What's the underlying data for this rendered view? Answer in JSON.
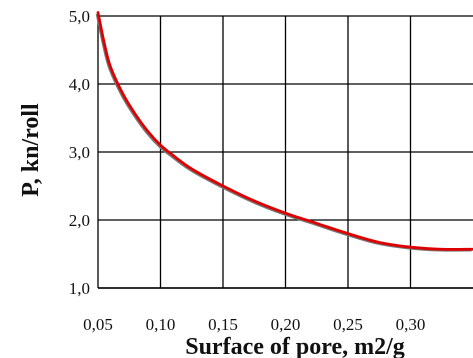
{
  "chart_data": {
    "type": "line",
    "title": "",
    "xlabel": "Surface of pore, m2/g",
    "ylabel": "P, kn/roll",
    "xlim": [
      0.05,
      0.35
    ],
    "ylim": [
      1.0,
      5.0
    ],
    "x_ticks": [
      "0,05",
      "0,10",
      "0,15",
      "0,20",
      "0,25",
      "0,30"
    ],
    "y_ticks": [
      "1,0",
      "2,0",
      "3,0",
      "4,0",
      "5,0"
    ],
    "grid": true,
    "series": [
      {
        "color": "#dd0000",
        "x": [
          0.05,
          0.055,
          0.06,
          0.07,
          0.08,
          0.09,
          0.1,
          0.11,
          0.125,
          0.15,
          0.175,
          0.2,
          0.225,
          0.25,
          0.275,
          0.3,
          0.325,
          0.35
        ],
        "y": [
          5.05,
          4.6,
          4.25,
          3.85,
          3.55,
          3.3,
          3.1,
          2.95,
          2.75,
          2.5,
          2.28,
          2.1,
          1.95,
          1.8,
          1.67,
          1.6,
          1.57,
          1.57
        ]
      }
    ]
  },
  "colors": {
    "grid": "#000000",
    "series_shadow": "#777777"
  }
}
